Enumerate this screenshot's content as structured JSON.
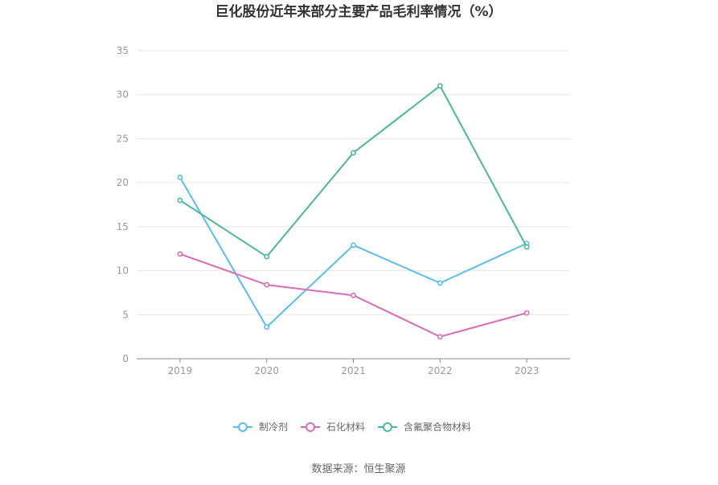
{
  "chart_data": {
    "type": "line",
    "title": "巨化股份近年来部分主要产品毛利率情况（%）",
    "xlabel": "",
    "ylabel": "",
    "x": [
      "2019",
      "2020",
      "2021",
      "2022",
      "2023"
    ],
    "ylim": [
      0,
      35
    ],
    "yticks": [
      0,
      5,
      10,
      15,
      20,
      25,
      30,
      35
    ],
    "grid": true,
    "legend_position": "bottom-center",
    "series": [
      {
        "name": "制冷剂",
        "color": "#5bbcee",
        "values": [
          20.6,
          3.6,
          12.9,
          8.6,
          13.1
        ]
      },
      {
        "name": "石化材料",
        "color": "#d86cb3",
        "values": [
          11.9,
          8.4,
          7.2,
          2.5,
          5.2
        ]
      },
      {
        "name": "含氟聚合物材料",
        "color": "#4cb79a",
        "values": [
          18.0,
          11.6,
          23.4,
          31.0,
          12.7
        ]
      }
    ]
  },
  "source_text": "数据来源：恒生聚源"
}
